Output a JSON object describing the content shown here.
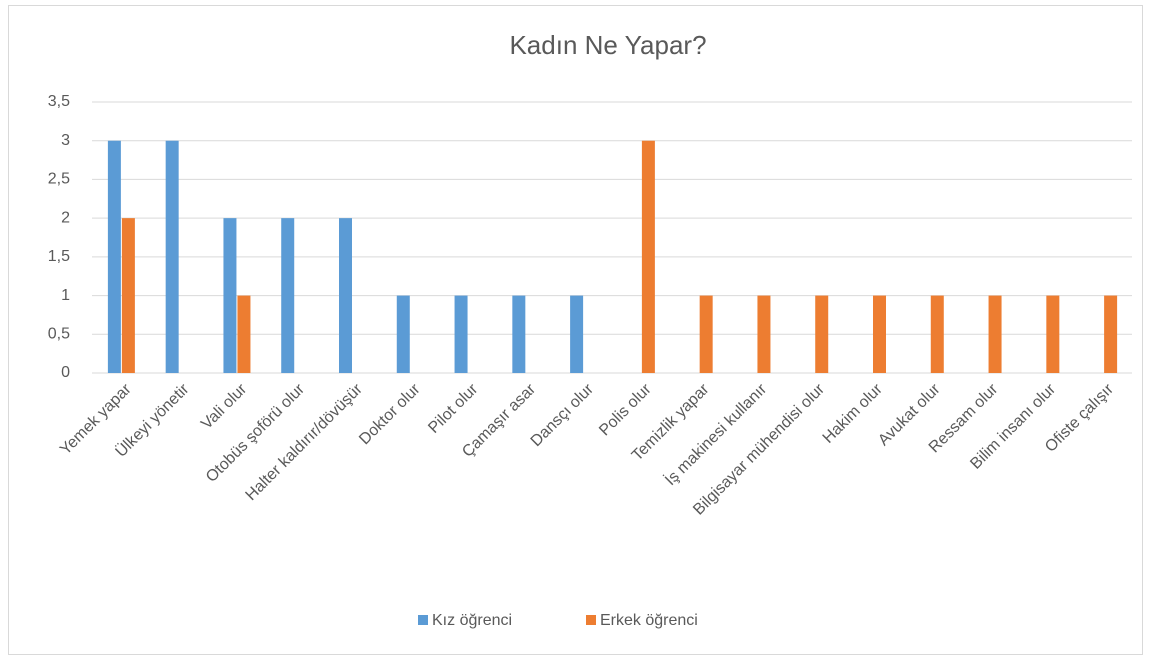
{
  "chart_data": {
    "type": "bar",
    "title": "Kadın Ne Yapar?",
    "categories": [
      "Yemek yapar",
      "Ülkeyi yönetir",
      "Vali olur",
      "Otobüs şoförü olur",
      "Halter kaldırır/dövüşür",
      "Doktor olur",
      "Pilot olur",
      "Çamaşır asar",
      "Dansçı olur",
      "Polis olur",
      "Temizlik yapar",
      "İş makinesi kullanır",
      "Bilgisayar mühendisi olur",
      "Hakim olur",
      "Avukat olur",
      "Ressam olur",
      "Bilim insanı olur",
      "Ofiste çalışır"
    ],
    "series": [
      {
        "name": "Kız öğrenci",
        "color": "#5b9bd5",
        "values": [
          3,
          3,
          2,
          2,
          2,
          1,
          1,
          1,
          1,
          0,
          0,
          0,
          0,
          0,
          0,
          0,
          0,
          0
        ]
      },
      {
        "name": "Erkek öğrenci",
        "color": "#ed7d31",
        "values": [
          2,
          0,
          1,
          0,
          0,
          0,
          0,
          0,
          0,
          3,
          1,
          1,
          1,
          1,
          1,
          1,
          1,
          1
        ]
      }
    ],
    "ylim": [
      0,
      3.5
    ],
    "yticks": [
      0,
      {
        "value": 0.5,
        "label": "0,5"
      },
      1,
      {
        "value": 1.5,
        "label": "1,5"
      },
      2,
      {
        "value": 2.5,
        "label": "2,5"
      },
      3,
      {
        "value": 3.5,
        "label": "3,5"
      }
    ],
    "grid": true,
    "legend": "bottom"
  }
}
